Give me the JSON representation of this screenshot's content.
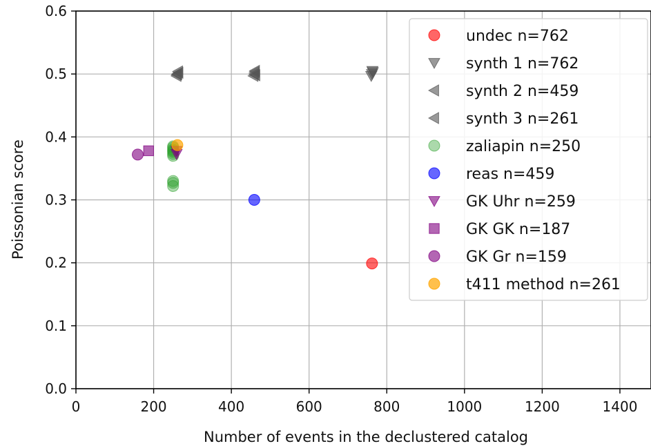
{
  "chart_data": {
    "type": "scatter",
    "title": "",
    "xlabel": "Number of events in the declustered catalog",
    "ylabel": "Poissonian score",
    "xlim": [
      0,
      1480
    ],
    "ylim": [
      0,
      0.6
    ],
    "xticks": [
      0,
      200,
      400,
      600,
      800,
      1000,
      1200,
      1400
    ],
    "yticks": [
      0.0,
      0.1,
      0.2,
      0.3,
      0.4,
      0.5,
      0.6
    ],
    "xtick_labels": [
      "0",
      "200",
      "400",
      "600",
      "800",
      "1000",
      "1200",
      "1400"
    ],
    "ytick_labels": [
      "0.0",
      "0.1",
      "0.2",
      "0.3",
      "0.4",
      "0.5",
      "0.6"
    ],
    "grid": true,
    "legend_position": "top-right",
    "series": [
      {
        "name": "undec n=762",
        "marker": "circle",
        "color": "#ff0000",
        "alpha": 0.6,
        "points": [
          [
            762,
            0.199
          ]
        ]
      },
      {
        "name": "synth 1 n=762",
        "marker": "triangle-down",
        "color": "#555555",
        "alpha": 0.6,
        "points": [
          [
            762,
            0.5
          ],
          [
            764,
            0.503
          ],
          [
            760,
            0.497
          ],
          [
            763,
            0.505
          ]
        ]
      },
      {
        "name": "synth 2 n=459",
        "marker": "triangle-left",
        "color": "#555555",
        "alpha": 0.6,
        "points": [
          [
            459,
            0.5
          ],
          [
            461,
            0.505
          ],
          [
            457,
            0.497
          ],
          [
            462,
            0.498
          ],
          [
            460,
            0.503
          ]
        ]
      },
      {
        "name": "synth 3 n=261",
        "marker": "triangle-left",
        "color": "#555555",
        "alpha": 0.6,
        "points": [
          [
            261,
            0.5
          ],
          [
            263,
            0.504
          ],
          [
            259,
            0.497
          ],
          [
            264,
            0.502
          ],
          [
            260,
            0.499
          ]
        ]
      },
      {
        "name": "zaliapin n=250",
        "marker": "circle",
        "color": "#2ca02c",
        "alpha": 0.4,
        "points": [
          [
            250,
            0.37
          ],
          [
            250,
            0.373
          ],
          [
            250,
            0.376
          ],
          [
            250,
            0.378
          ],
          [
            250,
            0.38
          ],
          [
            250,
            0.383
          ],
          [
            250,
            0.385
          ],
          [
            250,
            0.322
          ],
          [
            250,
            0.327
          ],
          [
            250,
            0.33
          ]
        ]
      },
      {
        "name": "reas n=459",
        "marker": "circle",
        "color": "#0000ff",
        "alpha": 0.6,
        "points": [
          [
            459,
            0.3
          ]
        ]
      },
      {
        "name": "GK Uhr n=259",
        "marker": "triangle-down",
        "color": "#800080",
        "alpha": 0.6,
        "points": [
          [
            259,
            0.373
          ],
          [
            259,
            0.378
          ]
        ]
      },
      {
        "name": "GK GK n=187",
        "marker": "square",
        "color": "#800080",
        "alpha": 0.6,
        "points": [
          [
            187,
            0.378
          ]
        ]
      },
      {
        "name": "GK Gr n=159",
        "marker": "circle",
        "color": "#800080",
        "alpha": 0.6,
        "points": [
          [
            159,
            0.372
          ]
        ]
      },
      {
        "name": "t411 method n=261",
        "marker": "circle",
        "color": "#ffa500",
        "alpha": 0.7,
        "points": [
          [
            261,
            0.387
          ]
        ]
      }
    ]
  }
}
